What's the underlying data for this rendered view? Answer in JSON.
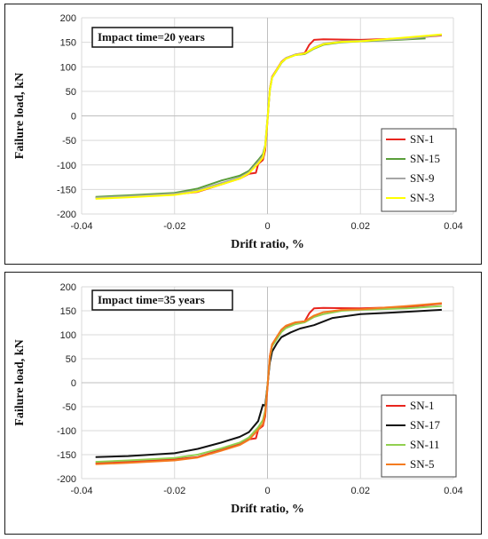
{
  "chart_data": [
    {
      "type": "line",
      "title": "",
      "annotation": "Impact time=20 years",
      "xlabel": "Drift ratio, %",
      "ylabel": "Failure load, kN",
      "xlim": [
        -0.04,
        0.04
      ],
      "ylim": [
        -200,
        200
      ],
      "xticks": [
        "-0.04",
        "-0.02",
        "0",
        "0.02",
        "0.04"
      ],
      "yticks": [
        "200",
        "150",
        "100",
        "50",
        "0",
        "-50",
        "-100",
        "-150",
        "-200"
      ],
      "grid": true,
      "legend_position": "bottom-right",
      "series": [
        {
          "name": "SN-1",
          "color": "#e8251e",
          "points": [
            [
              -0.037,
              -167
            ],
            [
              -0.03,
              -164
            ],
            [
              -0.02,
              -160
            ],
            [
              -0.015,
              -155
            ],
            [
              -0.01,
              -140
            ],
            [
              -0.006,
              -128
            ],
            [
              -0.004,
              -118
            ],
            [
              -0.0025,
              -116
            ],
            [
              -0.002,
              -98
            ],
            [
              -0.001,
              -90
            ],
            [
              -0.0005,
              -70
            ],
            [
              0,
              -10
            ],
            [
              0.0005,
              55
            ],
            [
              0.001,
              80
            ],
            [
              0.002,
              95
            ],
            [
              0.003,
              110
            ],
            [
              0.004,
              118
            ],
            [
              0.006,
              125
            ],
            [
              0.008,
              128
            ],
            [
              0.009,
              145
            ],
            [
              0.01,
              155
            ],
            [
              0.012,
              156
            ],
            [
              0.02,
              155
            ],
            [
              0.03,
              158
            ],
            [
              0.0375,
              164
            ]
          ]
        },
        {
          "name": "SN-15",
          "color": "#5a9e3a",
          "points": [
            [
              -0.037,
              -165
            ],
            [
              -0.03,
              -162
            ],
            [
              -0.02,
              -157
            ],
            [
              -0.015,
              -148
            ],
            [
              -0.01,
              -132
            ],
            [
              -0.006,
              -122
            ],
            [
              -0.004,
              -112
            ],
            [
              -0.002,
              -90
            ],
            [
              -0.001,
              -78
            ],
            [
              -0.0005,
              -60
            ],
            [
              0,
              -5
            ],
            [
              0.0005,
              52
            ],
            [
              0.001,
              78
            ],
            [
              0.002,
              93
            ],
            [
              0.003,
              108
            ],
            [
              0.004,
              117
            ],
            [
              0.006,
              124
            ],
            [
              0.008,
              126
            ],
            [
              0.01,
              137
            ],
            [
              0.012,
              145
            ],
            [
              0.016,
              150
            ],
            [
              0.02,
              152
            ],
            [
              0.028,
              155
            ],
            [
              0.034,
              158
            ]
          ]
        },
        {
          "name": "SN-9",
          "color": "#a6a6a6",
          "points": [
            [
              -0.037,
              -167
            ],
            [
              -0.03,
              -164
            ],
            [
              -0.02,
              -159
            ],
            [
              -0.015,
              -152
            ],
            [
              -0.01,
              -137
            ],
            [
              -0.006,
              -126
            ],
            [
              -0.004,
              -115
            ],
            [
              -0.002,
              -94
            ],
            [
              -0.001,
              -82
            ],
            [
              -0.0005,
              -62
            ],
            [
              0,
              -6
            ],
            [
              0.0005,
              54
            ],
            [
              0.001,
              79
            ],
            [
              0.002,
              94
            ],
            [
              0.003,
              109
            ],
            [
              0.004,
              118
            ],
            [
              0.006,
              125
            ],
            [
              0.008,
              127
            ],
            [
              0.01,
              139
            ],
            [
              0.012,
              147
            ],
            [
              0.016,
              152
            ],
            [
              0.02,
              153
            ],
            [
              0.03,
              157
            ],
            [
              0.0375,
              165
            ]
          ]
        },
        {
          "name": "SN-3",
          "color": "#ffff00",
          "points": [
            [
              -0.037,
              -169
            ],
            [
              -0.03,
              -166
            ],
            [
              -0.02,
              -161
            ],
            [
              -0.015,
              -154
            ],
            [
              -0.01,
              -140
            ],
            [
              -0.006,
              -128
            ],
            [
              -0.004,
              -117
            ],
            [
              -0.002,
              -97
            ],
            [
              -0.001,
              -85
            ],
            [
              -0.0005,
              -63
            ],
            [
              0,
              -8
            ],
            [
              0.0005,
              53
            ],
            [
              0.001,
              78
            ],
            [
              0.002,
              94
            ],
            [
              0.003,
              109
            ],
            [
              0.004,
              117
            ],
            [
              0.006,
              124
            ],
            [
              0.008,
              127
            ],
            [
              0.01,
              138
            ],
            [
              0.012,
              146
            ],
            [
              0.016,
              151
            ],
            [
              0.02,
              152
            ],
            [
              0.03,
              160
            ],
            [
              0.0375,
              166
            ]
          ]
        }
      ]
    },
    {
      "type": "line",
      "title": "",
      "annotation": "Impact time=35 years",
      "xlabel": "Drift ratio, %",
      "ylabel": "Failure load, kN",
      "xlim": [
        -0.04,
        0.04
      ],
      "ylim": [
        -200,
        200
      ],
      "xticks": [
        "-0.04",
        "-0.02",
        "0",
        "0.02",
        "0.04"
      ],
      "yticks": [
        "200",
        "150",
        "100",
        "50",
        "0",
        "-50",
        "-100",
        "-150",
        "-200"
      ],
      "grid": true,
      "legend_position": "bottom-right",
      "series": [
        {
          "name": "SN-1",
          "color": "#e8251e",
          "points": [
            [
              -0.037,
              -168
            ],
            [
              -0.03,
              -164
            ],
            [
              -0.02,
              -160
            ],
            [
              -0.015,
              -155
            ],
            [
              -0.01,
              -140
            ],
            [
              -0.006,
              -128
            ],
            [
              -0.004,
              -118
            ],
            [
              -0.0025,
              -116
            ],
            [
              -0.002,
              -98
            ],
            [
              -0.001,
              -90
            ],
            [
              -0.0005,
              -70
            ],
            [
              0,
              -10
            ],
            [
              0.0005,
              55
            ],
            [
              0.001,
              80
            ],
            [
              0.002,
              95
            ],
            [
              0.003,
              110
            ],
            [
              0.004,
              118
            ],
            [
              0.006,
              125
            ],
            [
              0.008,
              128
            ],
            [
              0.009,
              145
            ],
            [
              0.01,
              155
            ],
            [
              0.012,
              156
            ],
            [
              0.02,
              155
            ],
            [
              0.03,
              158
            ],
            [
              0.0375,
              165
            ]
          ]
        },
        {
          "name": "SN-17",
          "color": "#111111",
          "points": [
            [
              -0.037,
              -155
            ],
            [
              -0.03,
              -153
            ],
            [
              -0.025,
              -150
            ],
            [
              -0.02,
              -147
            ],
            [
              -0.015,
              -138
            ],
            [
              -0.01,
              -125
            ],
            [
              -0.006,
              -113
            ],
            [
              -0.004,
              -103
            ],
            [
              -0.002,
              -80
            ],
            [
              -0.001,
              -46
            ],
            [
              -0.0005,
              -48
            ],
            [
              0,
              -5
            ],
            [
              0.0005,
              42
            ],
            [
              0.001,
              65
            ],
            [
              0.002,
              82
            ],
            [
              0.003,
              95
            ],
            [
              0.005,
              105
            ],
            [
              0.007,
              113
            ],
            [
              0.01,
              120
            ],
            [
              0.014,
              135
            ],
            [
              0.02,
              143
            ],
            [
              0.026,
              146
            ],
            [
              0.03,
              148
            ],
            [
              0.0375,
              152
            ]
          ]
        },
        {
          "name": "SN-11",
          "color": "#92d050",
          "points": [
            [
              -0.037,
              -165
            ],
            [
              -0.03,
              -162
            ],
            [
              -0.02,
              -157
            ],
            [
              -0.015,
              -150
            ],
            [
              -0.01,
              -137
            ],
            [
              -0.006,
              -125
            ],
            [
              -0.004,
              -114
            ],
            [
              -0.002,
              -93
            ],
            [
              -0.001,
              -78
            ],
            [
              -0.0005,
              -58
            ],
            [
              0,
              -5
            ],
            [
              0.0005,
              52
            ],
            [
              0.001,
              76
            ],
            [
              0.002,
              91
            ],
            [
              0.003,
              106
            ],
            [
              0.004,
              114
            ],
            [
              0.006,
              122
            ],
            [
              0.008,
              126
            ],
            [
              0.01,
              137
            ],
            [
              0.012,
              143
            ],
            [
              0.016,
              150
            ],
            [
              0.02,
              152
            ],
            [
              0.03,
              155
            ],
            [
              0.0375,
              160
            ]
          ]
        },
        {
          "name": "SN-5",
          "color": "#f47b20",
          "points": [
            [
              -0.037,
              -170
            ],
            [
              -0.03,
              -167
            ],
            [
              -0.02,
              -162
            ],
            [
              -0.015,
              -156
            ],
            [
              -0.01,
              -142
            ],
            [
              -0.006,
              -130
            ],
            [
              -0.004,
              -119
            ],
            [
              -0.002,
              -98
            ],
            [
              -0.001,
              -86
            ],
            [
              -0.0005,
              -64
            ],
            [
              0,
              -8
            ],
            [
              0.0005,
              54
            ],
            [
              0.001,
              80
            ],
            [
              0.002,
              96
            ],
            [
              0.003,
              111
            ],
            [
              0.004,
              119
            ],
            [
              0.006,
              126
            ],
            [
              0.008,
              128
            ],
            [
              0.01,
              140
            ],
            [
              0.012,
              147
            ],
            [
              0.016,
              152
            ],
            [
              0.02,
              153
            ],
            [
              0.03,
              160
            ],
            [
              0.0375,
              166
            ]
          ]
        }
      ]
    }
  ]
}
